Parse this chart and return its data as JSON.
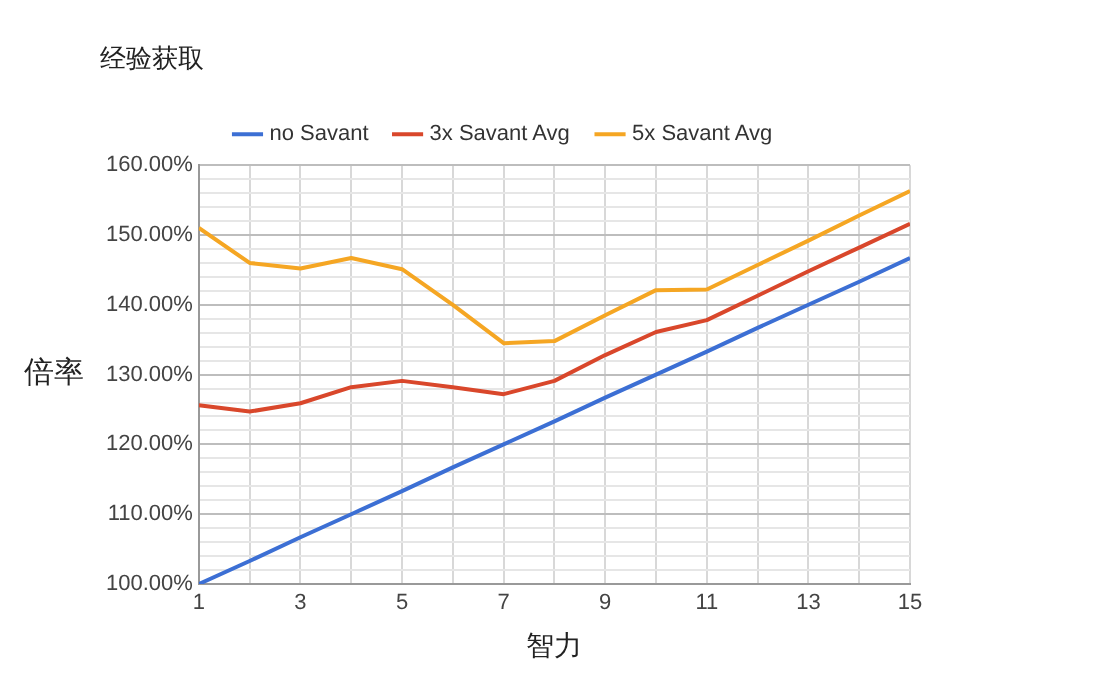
{
  "chart_data": {
    "type": "line",
    "title": "经验获取",
    "xlabel": "智力",
    "ylabel": "倍率",
    "x": [
      1,
      2,
      3,
      4,
      5,
      6,
      7,
      8,
      9,
      10,
      11,
      12,
      13,
      14,
      15
    ],
    "series": [
      {
        "name": "no Savant",
        "color": "#3c6fd4",
        "values": [
          100,
          103.3,
          106.7,
          110,
          113.3,
          116.7,
          120,
          123.3,
          126.7,
          130,
          133.3,
          136.7,
          140,
          143.3,
          146.7
        ]
      },
      {
        "name": "3x Savant Avg",
        "color": "#d9472b",
        "values": [
          125.6,
          124.7,
          125.9,
          128.2,
          129.1,
          128.2,
          127.2,
          129.1,
          132.8,
          136.1,
          137.8,
          141.3,
          144.8,
          148.2,
          151.6
        ]
      },
      {
        "name": "5x Savant Avg",
        "color": "#f5a623",
        "values": [
          151,
          146,
          145.2,
          146.7,
          145.1,
          140,
          134.5,
          134.8,
          138.5,
          142.1,
          142.2,
          145.7,
          149.2,
          152.8,
          156.3
        ]
      }
    ],
    "xlim": [
      1,
      15
    ],
    "xticks": [
      1,
      {
        "value": 2,
        "label": null
      },
      3,
      {
        "value": 4,
        "label": null
      },
      5,
      {
        "value": 6,
        "label": null
      },
      7,
      {
        "value": 8,
        "label": null
      },
      9,
      {
        "value": 10,
        "label": null
      },
      11,
      {
        "value": 12,
        "label": null
      },
      13,
      {
        "value": 14,
        "label": null
      },
      15
    ],
    "ylim": [
      100,
      160
    ],
    "yticks": [
      {
        "value": 100,
        "label": "100.00%"
      },
      {
        "value": 102,
        "label": null
      },
      {
        "value": 104,
        "label": null
      },
      {
        "value": 106,
        "label": null
      },
      {
        "value": 108,
        "label": null
      },
      {
        "value": 110,
        "label": "110.00%"
      },
      {
        "value": 112,
        "label": null
      },
      {
        "value": 114,
        "label": null
      },
      {
        "value": 116,
        "label": null
      },
      {
        "value": 118,
        "label": null
      },
      {
        "value": 120,
        "label": "120.00%"
      },
      {
        "value": 122,
        "label": null
      },
      {
        "value": 124,
        "label": null
      },
      {
        "value": 126,
        "label": null
      },
      {
        "value": 128,
        "label": null
      },
      {
        "value": 130,
        "label": "130.00%"
      },
      {
        "value": 132,
        "label": null
      },
      {
        "value": 134,
        "label": null
      },
      {
        "value": 136,
        "label": null
      },
      {
        "value": 138,
        "label": null
      },
      {
        "value": 140,
        "label": "140.00%"
      },
      {
        "value": 142,
        "label": null
      },
      {
        "value": 144,
        "label": null
      },
      {
        "value": 146,
        "label": null
      },
      {
        "value": 148,
        "label": null
      },
      {
        "value": 150,
        "label": "150.00%"
      },
      {
        "value": 152,
        "label": null
      },
      {
        "value": 154,
        "label": null
      },
      {
        "value": 156,
        "label": null
      },
      {
        "value": 158,
        "label": null
      },
      {
        "value": 160,
        "label": "160.00%"
      }
    ],
    "grid": true,
    "legend": "top",
    "marker": "none",
    "line_style": "solid"
  }
}
